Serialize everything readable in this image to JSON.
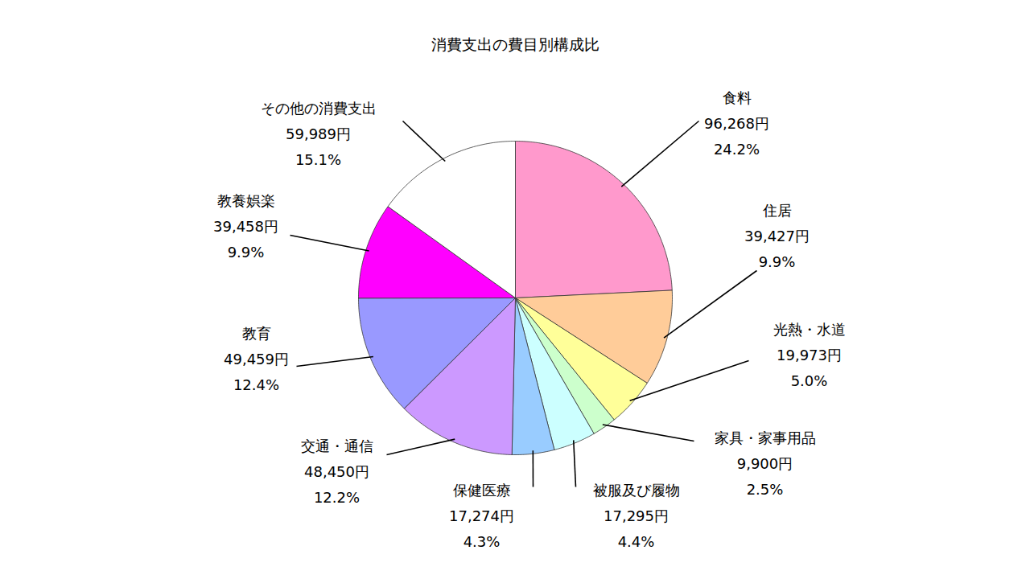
{
  "chart_data": {
    "type": "pie",
    "title": "消費支出の費目別構成比",
    "categories": [
      "食料",
      "住居",
      "光熱・水道",
      "家具・家事用品",
      "被服及び履物",
      "保健医療",
      "交通・通信",
      "教育",
      "教養娯楽",
      "その他の消費支出"
    ],
    "values": [
      96268,
      39427,
      19973,
      9900,
      17295,
      17274,
      48450,
      49459,
      39458,
      59989
    ],
    "value_labels": [
      "96,268円",
      "39,427円",
      "19,973円",
      "9,900円",
      "17,295円",
      "17,274円",
      "48,450円",
      "49,459円",
      "39,458円",
      "59,989円"
    ],
    "percents": [
      24.2,
      9.9,
      5.0,
      2.5,
      4.4,
      4.3,
      12.2,
      12.4,
      9.9,
      15.1
    ],
    "percent_labels": [
      "24.2%",
      "9.9%",
      "5.0%",
      "2.5%",
      "4.4%",
      "4.3%",
      "12.2%",
      "12.4%",
      "9.9%",
      "15.1%"
    ],
    "colors": [
      "#ff99cc",
      "#ffcc99",
      "#ffff99",
      "#ccffcc",
      "#ccffff",
      "#99ccff",
      "#cc99ff",
      "#9999ff",
      "#ff00ff",
      "#ffffff"
    ],
    "data_labels": true
  }
}
